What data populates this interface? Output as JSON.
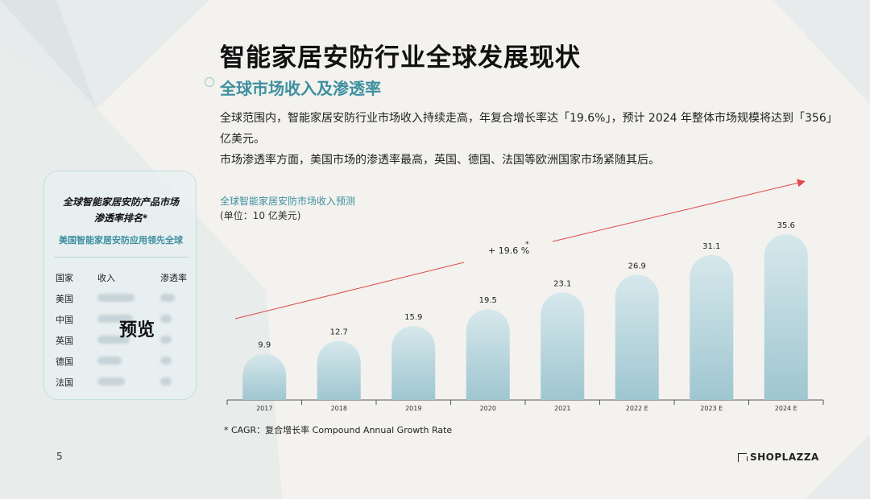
{
  "page": {
    "title": "智能家居安防行业全球发展现状",
    "subtitle": "全球市场收入及渗透率",
    "paragraphs": [
      "全球范围内，智能家居安防行业市场收入持续走高，年复合增长率达「19.6%」，预计 2024 年整体市场规模将达到「356」亿美元。",
      "市场渗透率方面，美国市场的渗透率最高，英国、德国、法国等欧洲国家市场紧随其后。"
    ],
    "footnote": "* CAGR：复合增长率 Compound Annual Growth Rate",
    "page_number": "5",
    "brand": "SHOPLAZZA"
  },
  "side_card": {
    "heading_line1": "全球智能家居安防产品市场",
    "heading_line2": "渗透率排名*",
    "subheading": "美国智能家居安防应用领先全球",
    "columns": [
      "国家",
      "收入",
      "渗透率"
    ],
    "countries": [
      "美国",
      "中国",
      "英国",
      "德国",
      "法国"
    ],
    "overlay_label": "预览"
  },
  "chart_data": {
    "type": "bar",
    "title": "全球智能家居安防市场收入预测",
    "unit_label": "(单位：10 亿美元)",
    "categories": [
      "2017",
      "2018",
      "2019",
      "2020",
      "2021",
      "2022 E",
      "2023 E",
      "2024 E"
    ],
    "values": [
      9.9,
      12.7,
      15.9,
      19.5,
      23.1,
      26.9,
      31.1,
      35.6
    ],
    "ylim": [
      0,
      35.6
    ],
    "grid": false,
    "trend_annotation": "+ 19.6 %",
    "trend_annotation_mark": "*",
    "colors": {
      "bar_top": "#d6e8ec",
      "bar_bottom": "#9fc6d0",
      "trend_line": "#e0474c",
      "axis": "#555555"
    }
  }
}
